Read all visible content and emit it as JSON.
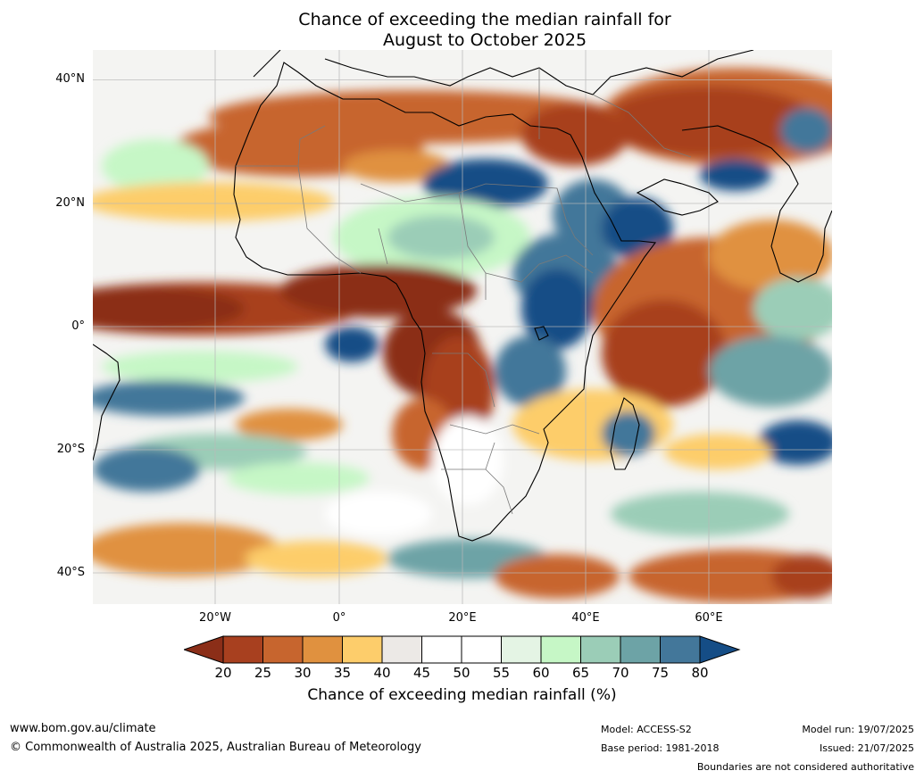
{
  "title": {
    "line1": "Chance of exceeding the median rainfall for",
    "line2": "August to October 2025"
  },
  "map": {
    "lat_labels": [
      "40°N",
      "20°N",
      "0°",
      "20°S",
      "40°S"
    ],
    "lon_labels": [
      "20°W",
      "0°",
      "20°E",
      "40°E",
      "60°E"
    ]
  },
  "colorbar": {
    "ticks": [
      "20",
      "25",
      "30",
      "35",
      "40",
      "45",
      "50",
      "55",
      "60",
      "65",
      "70",
      "75",
      "80"
    ],
    "label": "Chance of exceeding median rainfall (%)",
    "colors": [
      "#8b2e18",
      "#a8401f",
      "#c7652e",
      "#e0913f",
      "#fdcd6b",
      "#ece9e6",
      "#ffffff",
      "#ffffff",
      "#e4f4e4",
      "#c6f7c6",
      "#9bcdb7",
      "#6da3a6",
      "#43779a",
      "#154d86"
    ]
  },
  "footer": {
    "website": "www.bom.gov.au/climate",
    "copyright": "© Commonwealth of Australia 2025, Australian Bureau of Meteorology",
    "model": "Model: ACCESS-S2",
    "base_period": "Base period: 1981-2018",
    "model_run": "Model run: 19/07/2025",
    "issued": "Issued: 21/07/2025",
    "disclaimer": "Boundaries are not considered authoritative"
  }
}
